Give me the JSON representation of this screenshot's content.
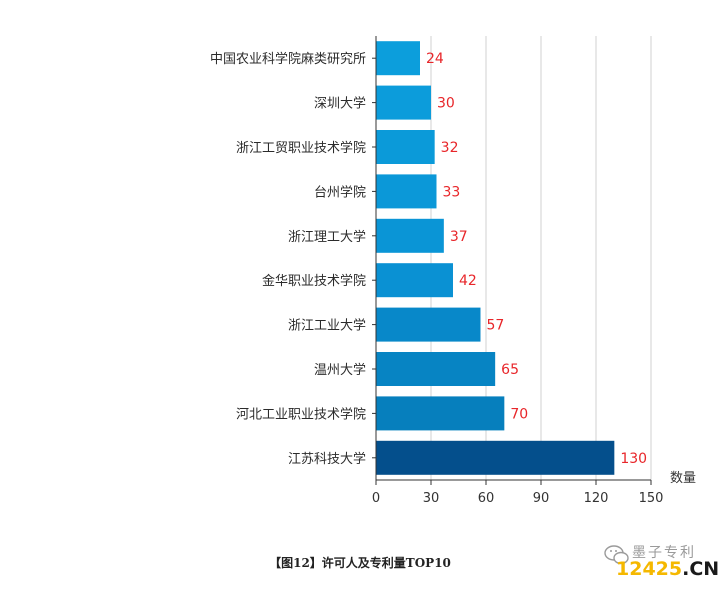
{
  "chart_data": {
    "type": "bar",
    "orientation": "horizontal",
    "categories": [
      "中国农业科学院麻类研究所",
      "深圳大学",
      "浙江工贸职业技术学院",
      "台州学院",
      "浙江理工大学",
      "金华职业技术学院",
      "浙江工业大学",
      "温州大学",
      "河北工业职业技术学院",
      "江苏科技大学"
    ],
    "values": [
      24,
      30,
      32,
      33,
      37,
      42,
      57,
      65,
      70,
      130
    ],
    "xlabel": "数量",
    "xlim": [
      0,
      150
    ],
    "xticks": [
      0,
      30,
      60,
      90,
      120,
      150
    ],
    "grid": "vertical",
    "colors": {
      "bars": [
        "#0c9edc",
        "#0c9cdb",
        "#0b9ad9",
        "#0b98d8",
        "#0a95d6",
        "#0a91d3",
        "#0888c9",
        "#0784c3",
        "#067fbd",
        "#044f8c"
      ],
      "value_labels": "#e8262a",
      "grid": "#d0d0d0",
      "axis": "#333333"
    }
  },
  "caption": "【图12】许可人及专利量TOP10",
  "watermark": {
    "brand": "墨子专利",
    "logo_text": "12425",
    "logo_suffix": ".CN",
    "icon": "wechat-icon"
  }
}
